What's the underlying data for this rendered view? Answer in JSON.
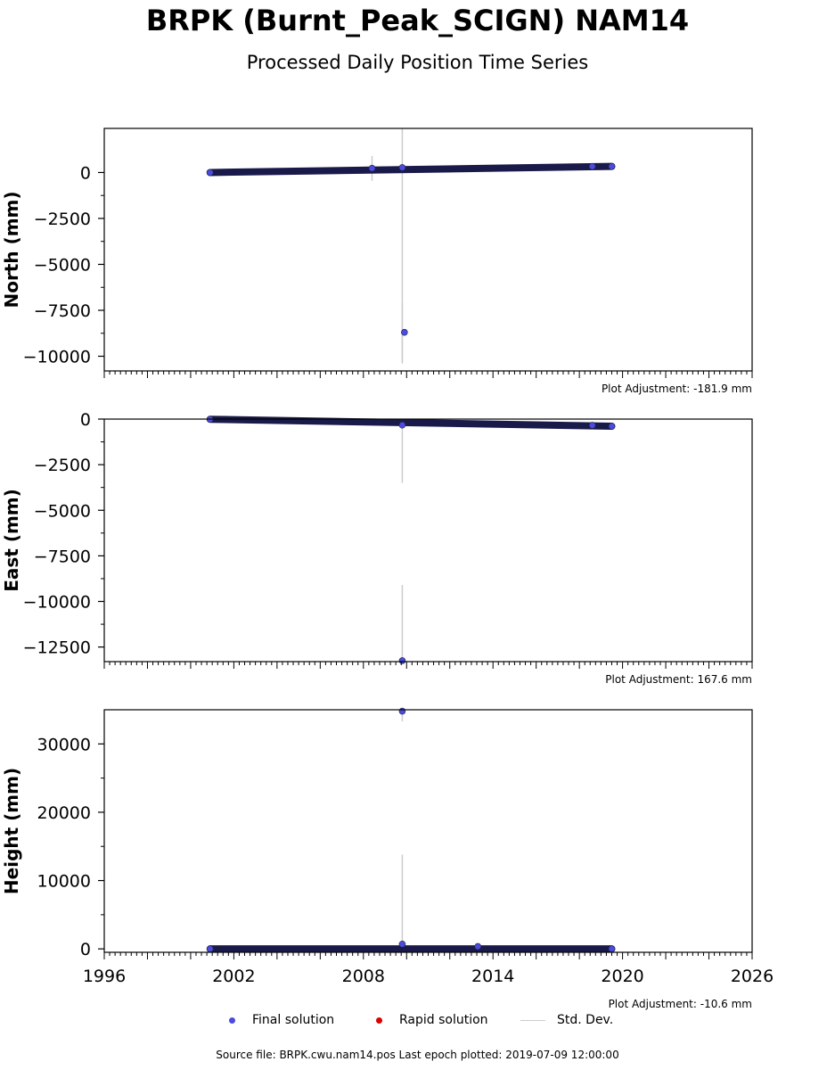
{
  "title": "BRPK (Burnt_Peak_SCIGN) NAM14",
  "subtitle": "Processed Daily Position Time Series",
  "legend": {
    "final": "Final solution",
    "rapid": "Rapid solution",
    "stddev": "Std. Dev."
  },
  "source": "Source file: BRPK.cwu.nam14.pos  Last epoch plotted: 2019-07-09 12:00:00",
  "colors": {
    "final": "#4b4bdf",
    "rapid": "#dd0000",
    "stddev": "#cccccc",
    "cluster": "#1a1a4a"
  },
  "chart_data": [
    {
      "type": "scatter",
      "ylabel": "North (mm)",
      "adjustment": "Plot Adjustment: -181.9 mm",
      "xlim": [
        1996,
        2026
      ],
      "ylim": [
        -10800,
        2400
      ],
      "yticks": [
        0,
        -2500,
        -5000,
        -7500,
        -10000
      ],
      "ytick_labels": [
        "0",
        "−2500",
        "−5000",
        "−7500",
        "−10000"
      ],
      "trend": {
        "x": [
          2000.9,
          2019.5
        ],
        "y": [
          0,
          330
        ]
      },
      "series": [
        {
          "x": [
            2000.9,
            2008.4,
            2009.8,
            2009.9,
            2018.6,
            2019.5
          ],
          "y": [
            0,
            230,
            270,
            -8700,
            330,
            330
          ]
        }
      ],
      "error_bars": [
        {
          "x": 2008.4,
          "low": -450,
          "high": 900
        },
        {
          "x": 2009.8,
          "low": -10400,
          "high": 2400
        },
        {
          "x": 2009.8,
          "low": -10300,
          "high": -7100
        }
      ]
    },
    {
      "type": "scatter",
      "ylabel": "East (mm)",
      "adjustment": "Plot Adjustment: 167.6 mm",
      "xlim": [
        1996,
        2026
      ],
      "ylim": [
        -13300,
        0
      ],
      "yticks": [
        0,
        -2500,
        -5000,
        -7500,
        -10000,
        -12500
      ],
      "ytick_labels": [
        "0",
        "−2500",
        "−5000",
        "−7500",
        "−10000",
        "−12500"
      ],
      "trend": {
        "x": [
          2000.9,
          2019.5
        ],
        "y": [
          -10,
          -390
        ]
      },
      "series": [
        {
          "x": [
            2000.9,
            2009.8,
            2018.6,
            2019.5,
            2009.8
          ],
          "y": [
            -10,
            -330,
            -340,
            -390,
            -13250
          ]
        }
      ],
      "error_bars": [
        {
          "x": 2009.8,
          "low": -3500,
          "high": 0
        },
        {
          "x": 2009.8,
          "low": -13300,
          "high": -9100
        }
      ]
    },
    {
      "type": "scatter",
      "ylabel": "Height (mm)",
      "adjustment": "Plot Adjustment: -10.6 mm",
      "xlim": [
        1996,
        2026
      ],
      "ylim": [
        -500,
        35000
      ],
      "xticks": [
        1996,
        2002,
        2008,
        2014,
        2020,
        2026
      ],
      "xtick_labels": [
        "1996",
        "2002",
        "2008",
        "2014",
        "2020",
        "2026"
      ],
      "yticks": [
        0,
        10000,
        20000,
        30000
      ],
      "ytick_labels": [
        "0",
        "10000",
        "20000",
        "30000"
      ],
      "trend": {
        "x": [
          2000.9,
          2019.5
        ],
        "y": [
          0,
          0
        ]
      },
      "series": [
        {
          "x": [
            2000.9,
            2009.8,
            2013.3,
            2019.5,
            2009.8
          ],
          "y": [
            0,
            700,
            350,
            0,
            34800
          ]
        }
      ],
      "error_bars": [
        {
          "x": 2009.8,
          "low": -300,
          "high": 13800
        },
        {
          "x": 2009.8,
          "low": 33300,
          "high": 35000
        }
      ]
    }
  ]
}
